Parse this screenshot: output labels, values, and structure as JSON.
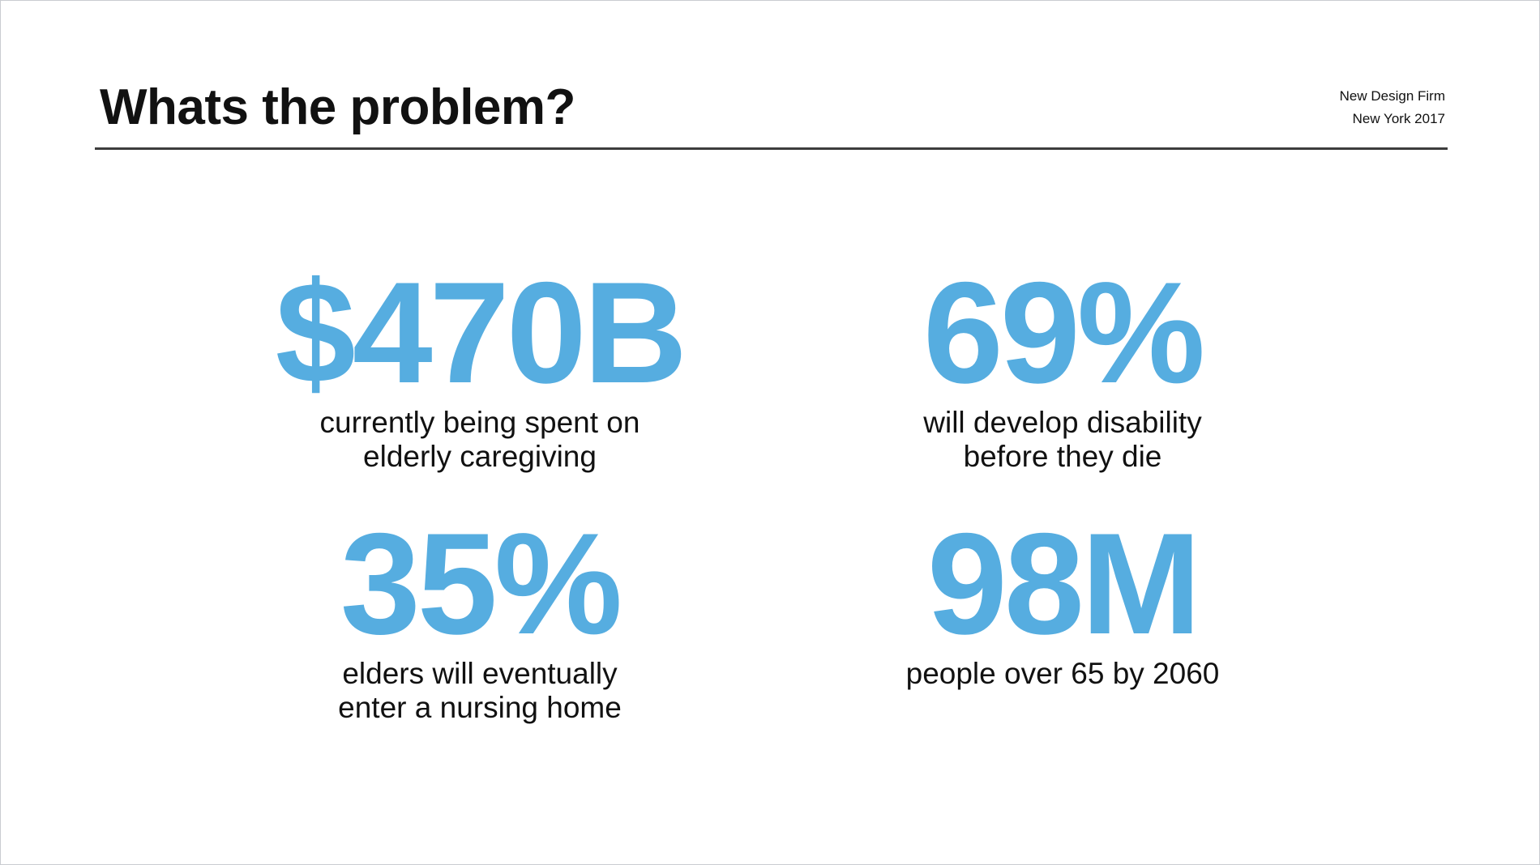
{
  "slide": {
    "title": "Whats the problem?",
    "meta": {
      "line1": "New Design Firm",
      "line2": "New York 2017"
    },
    "accent_color": "#56ade0",
    "stats": [
      {
        "value": "$470B",
        "desc_line1": "currently being spent on",
        "desc_line2": "elderly caregiving"
      },
      {
        "value": "69%",
        "desc_line1": "will develop disability",
        "desc_line2": "before they die"
      },
      {
        "value": "35%",
        "desc_line1": "elders will eventually",
        "desc_line2": "enter a nursing home"
      },
      {
        "value": "98M",
        "desc_line1": "people over 65 by 2060",
        "desc_line2": ""
      }
    ]
  }
}
